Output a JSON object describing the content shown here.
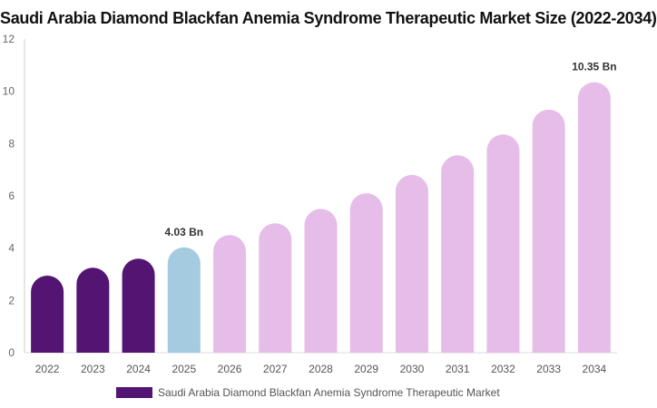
{
  "chart_data": {
    "type": "bar",
    "title": "Saudi Arabia Diamond Blackfan Anemia Syndrome Therapeutic Market Size (2022-2034)",
    "categories": [
      "2022",
      "2023",
      "2024",
      "2025",
      "2026",
      "2027",
      "2028",
      "2029",
      "2030",
      "2031",
      "2032",
      "2033",
      "2034"
    ],
    "series": [
      {
        "name": "Saudi Arabia Diamond Blackfan Anemia Syndrome Therapeutic Market",
        "values": [
          2.95,
          3.25,
          3.6,
          4.03,
          4.5,
          4.95,
          5.5,
          6.1,
          6.8,
          7.55,
          8.35,
          9.3,
          10.35
        ]
      }
    ],
    "data_labels": [
      {
        "category": "2025",
        "text": "4.03 Bn"
      },
      {
        "category": "2034",
        "text": "10.35 Bn"
      }
    ],
    "y_ticks": [
      0,
      2,
      4,
      6,
      8,
      10,
      12
    ],
    "ylim": [
      0,
      12
    ],
    "xlabel": "",
    "ylabel": "",
    "grid": false,
    "legend_position": "bottom",
    "colors": {
      "historical": "#541472",
      "base_year": "#a4cbdf",
      "forecast": "#e6bde8"
    },
    "color_by_category": [
      "historical",
      "historical",
      "historical",
      "base_year",
      "forecast",
      "forecast",
      "forecast",
      "forecast",
      "forecast",
      "forecast",
      "forecast",
      "forecast",
      "forecast"
    ]
  }
}
